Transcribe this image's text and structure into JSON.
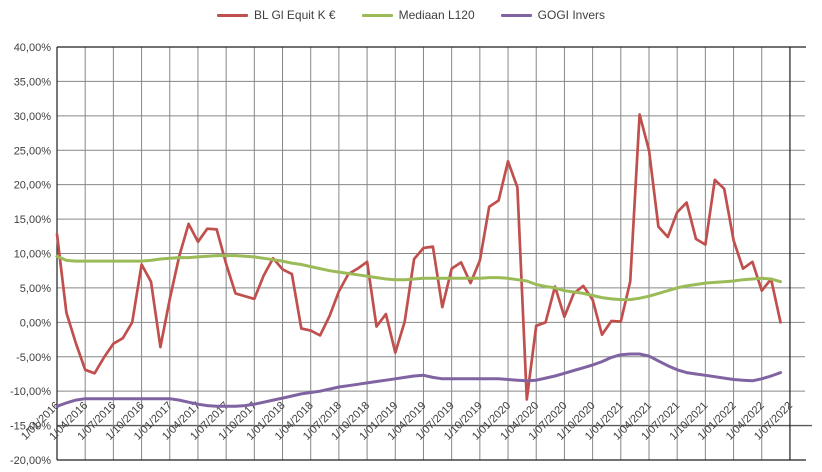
{
  "chart_data": {
    "type": "line",
    "title": "",
    "legend_position": "top",
    "grid": true,
    "x_frequency": "monthly",
    "x_start": "1/01/2016",
    "x_end": "1/07/2022",
    "ylim": [
      -20,
      40
    ],
    "y_step_pct": 5,
    "y_tick_labels": [
      "40,00%",
      "35,00%",
      "30,00%",
      "25,00%",
      "20,00%",
      "15,00%",
      "10,00%",
      "5,00%",
      "0,00%",
      "-5,00%",
      "-10,00%",
      "-15,00%",
      "-20,00%"
    ],
    "x_tick_labels": [
      "1/01/2016",
      "1/04/2016",
      "1/07/2016",
      "1/10/2016",
      "1/01/2017",
      "1/04/2017",
      "1/07/2017",
      "1/10/2017",
      "1/01/2018",
      "1/04/2018",
      "1/07/2018",
      "1/10/2018",
      "1/01/2019",
      "1/04/2019",
      "1/07/2019",
      "1/10/2019",
      "1/01/2020",
      "1/04/2020",
      "1/07/2020",
      "1/10/2020",
      "1/01/2021",
      "1/04/2021",
      "1/07/2021",
      "1/10/2021",
      "1/01/2022",
      "1/04/2022",
      "1/07/2022"
    ],
    "legend": [
      {
        "label": "BL Gl Equit K €",
        "color": "#C0504D"
      },
      {
        "label": "Mediaan L120",
        "color": "#9BBB59"
      },
      {
        "label": "GOGI Invers",
        "color": "#8064A2"
      }
    ],
    "series": [
      {
        "name": "BL Gl Equit K €",
        "color": "#C0504D",
        "width": 2.7,
        "values": [
          12.8,
          1.4,
          -3.0,
          -6.9,
          -7.4,
          -5.1,
          -3.1,
          -2.3,
          0.0,
          8.4,
          5.9,
          -3.6,
          3.4,
          9.6,
          14.3,
          11.7,
          13.6,
          13.5,
          8.5,
          4.2,
          3.8,
          3.4,
          6.8,
          9.3,
          7.7,
          7.0,
          -0.9,
          -1.2,
          -1.9,
          0.9,
          4.5,
          7.0,
          7.8,
          8.8,
          -0.6,
          1.2,
          -4.4,
          0.1,
          9.2,
          10.8,
          11.0,
          2.2,
          7.8,
          8.7,
          5.7,
          9.0,
          16.8,
          17.7,
          23.4,
          19.6,
          -11.2,
          -0.5,
          0.0,
          5.2,
          0.8,
          4.2,
          5.3,
          3.3,
          -1.8,
          0.2,
          0.1,
          5.9,
          30.2,
          25.0,
          13.9,
          12.4,
          16.0,
          17.4,
          12.1,
          11.3,
          20.7,
          19.4,
          11.9,
          7.8,
          8.8,
          4.6,
          6.3,
          0.0
        ]
      },
      {
        "name": "Mediaan L120",
        "color": "#9BBB59",
        "width": 3.0,
        "values": [
          9.6,
          9.0,
          8.9,
          8.9,
          8.9,
          8.9,
          8.9,
          8.9,
          8.9,
          8.9,
          9.0,
          9.2,
          9.3,
          9.4,
          9.4,
          9.5,
          9.6,
          9.7,
          9.7,
          9.7,
          9.6,
          9.5,
          9.3,
          9.1,
          8.9,
          8.6,
          8.4,
          8.1,
          7.8,
          7.5,
          7.3,
          7.1,
          6.9,
          6.7,
          6.5,
          6.3,
          6.2,
          6.2,
          6.3,
          6.4,
          6.4,
          6.4,
          6.4,
          6.4,
          6.4,
          6.4,
          6.5,
          6.5,
          6.4,
          6.2,
          6.0,
          5.5,
          5.2,
          5.0,
          4.6,
          4.4,
          4.2,
          3.9,
          3.6,
          3.4,
          3.3,
          3.3,
          3.5,
          3.8,
          4.2,
          4.6,
          5.0,
          5.3,
          5.5,
          5.7,
          5.8,
          5.9,
          6.0,
          6.2,
          6.3,
          6.4,
          6.3,
          5.9
        ]
      },
      {
        "name": "GOGI Invers",
        "color": "#8064A2",
        "width": 3.0,
        "values": [
          -12.2,
          -11.7,
          -11.3,
          -11.1,
          -11.1,
          -11.1,
          -11.1,
          -11.1,
          -11.1,
          -11.1,
          -11.1,
          -11.1,
          -11.1,
          -11.3,
          -11.6,
          -11.9,
          -12.1,
          -12.2,
          -12.2,
          -12.2,
          -12.1,
          -11.9,
          -11.6,
          -11.3,
          -11.0,
          -10.7,
          -10.4,
          -10.2,
          -10.0,
          -9.7,
          -9.4,
          -9.2,
          -9.0,
          -8.8,
          -8.6,
          -8.4,
          -8.2,
          -8.0,
          -7.8,
          -7.7,
          -8.0,
          -8.2,
          -8.2,
          -8.2,
          -8.2,
          -8.2,
          -8.2,
          -8.2,
          -8.3,
          -8.4,
          -8.5,
          -8.4,
          -8.1,
          -7.8,
          -7.4,
          -7.0,
          -6.6,
          -6.2,
          -5.7,
          -5.1,
          -4.7,
          -4.6,
          -4.6,
          -4.9,
          -5.6,
          -6.3,
          -6.9,
          -7.3,
          -7.5,
          -7.7,
          -7.9,
          -8.1,
          -8.3,
          -8.4,
          -8.5,
          -8.2,
          -7.8,
          -7.3
        ]
      }
    ],
    "colors": {
      "gridline": "#878787",
      "axis_line": "#1f1f1f",
      "category_axis_line": "#595959",
      "tick_text": "#404040",
      "background": "#ffffff"
    }
  }
}
